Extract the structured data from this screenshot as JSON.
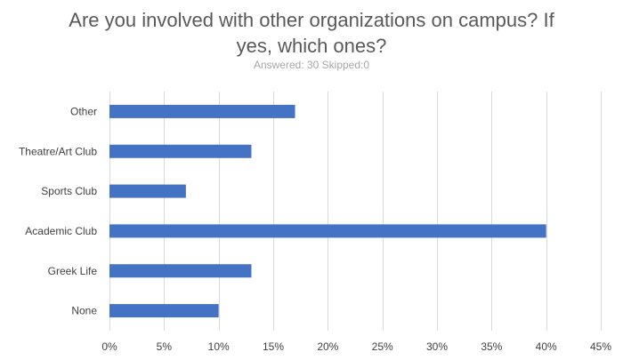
{
  "chart_data": {
    "type": "bar",
    "orientation": "horizontal",
    "title": "Are you involved with other organizations on campus? If yes, which ones?",
    "subtitle": "Answered: 30 Skipped:0",
    "categories": [
      "Other",
      "Theatre/Art Club",
      "Sports Club",
      "Academic Club",
      "Greek Life",
      "None"
    ],
    "values": [
      0.17,
      0.13,
      0.07,
      0.4,
      0.13,
      0.1
    ],
    "xlim": [
      0,
      0.45
    ],
    "xticks": [
      0,
      0.05,
      0.1,
      0.15,
      0.2,
      0.25,
      0.3,
      0.35,
      0.4,
      0.45
    ],
    "xtick_labels": [
      "0%",
      "5%",
      "10%",
      "15%",
      "20%",
      "25%",
      "30%",
      "35%",
      "40%",
      "45%"
    ],
    "grid": "vertical",
    "legend": "none",
    "bar_color": "#4472c4",
    "grid_color": "#d9d9d9"
  }
}
